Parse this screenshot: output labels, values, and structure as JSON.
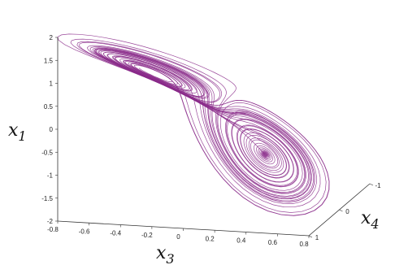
{
  "chart_data": {
    "type": "line",
    "title": "",
    "projection": "3d",
    "line_color": "#8a2a8a",
    "grid": false,
    "z_axis": {
      "label_base": "x",
      "label_sub": "1",
      "ticks": [
        "-2",
        "-1.5",
        "-1",
        "-0.5",
        "0",
        "0.5",
        "1",
        "1.5",
        "2"
      ],
      "range": [
        -2,
        2
      ]
    },
    "x_axis": {
      "label_base": "x",
      "label_sub": "3",
      "ticks": [
        "-0.8",
        "-0.6",
        "-0.4",
        "-0.2",
        "0",
        "0.2",
        "0.4",
        "0.6",
        "0.8"
      ],
      "range": [
        -0.8,
        0.8
      ]
    },
    "y_axis": {
      "label_base": "x",
      "label_sub": "4",
      "ticks": [
        "-1",
        "0",
        "1"
      ],
      "range": [
        -1,
        1
      ]
    },
    "series": [
      {
        "description_lobes": [
          {
            "x3_center": -0.5,
            "x1_center": 1.4,
            "x4_center": 0.2,
            "x3_radius": 0.35,
            "x1_radius": 0.55
          },
          {
            "x3_center": 0.45,
            "x1_center": -1.1,
            "x4_center": -0.2,
            "x3_radius": 0.35,
            "x1_radius": 0.5
          }
        ]
      }
    ]
  }
}
